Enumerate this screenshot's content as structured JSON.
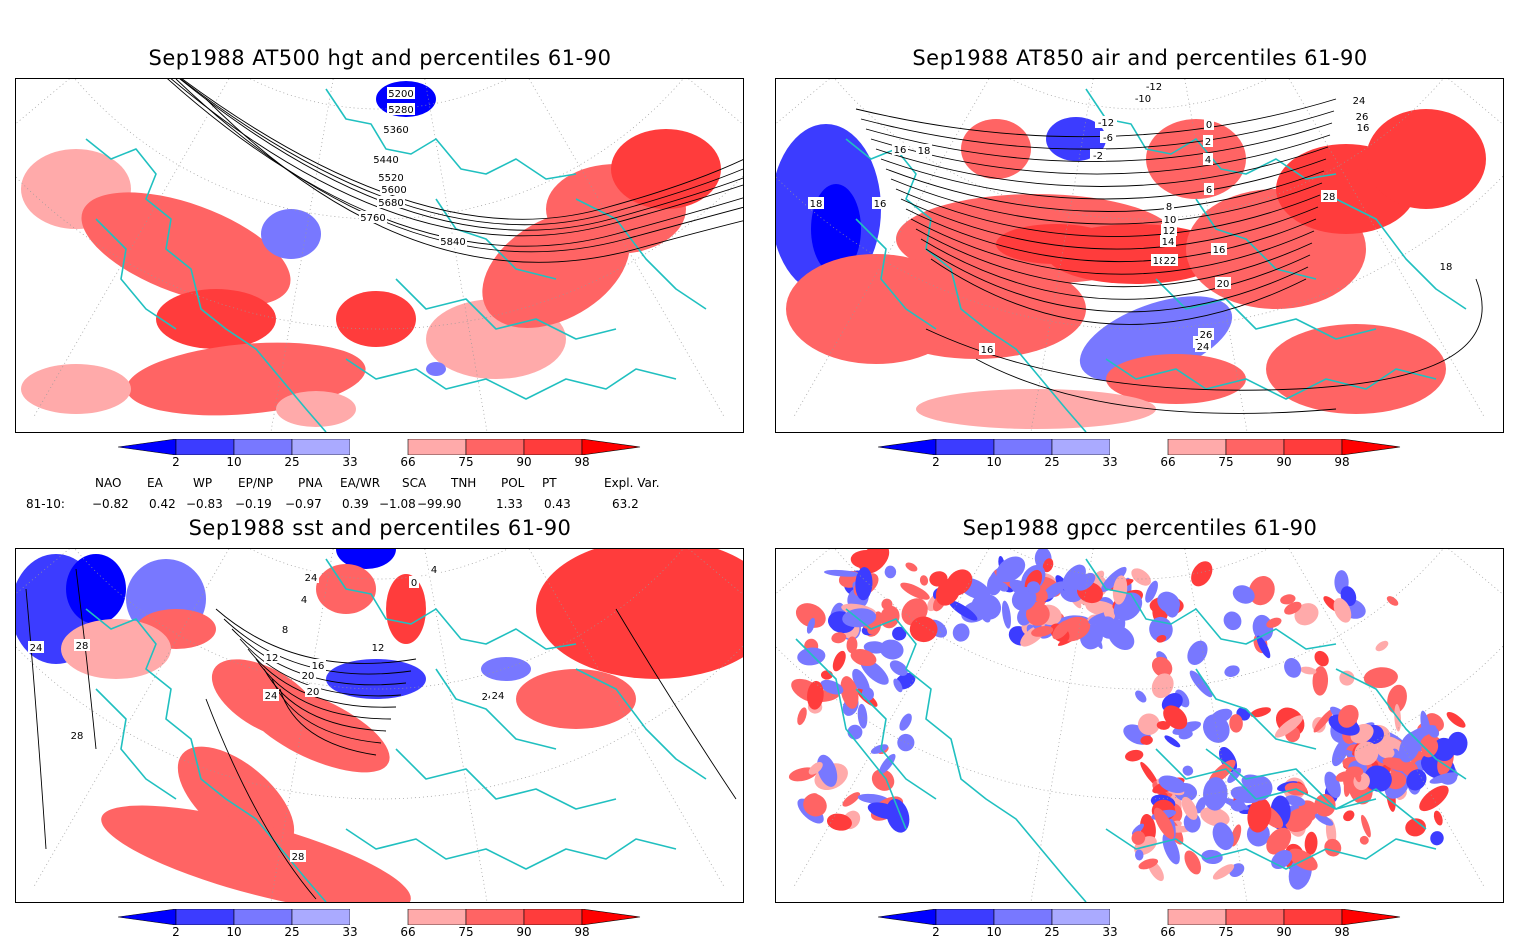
{
  "panels": [
    {
      "id": "p1",
      "title": "Sep1988 AT500 hgt and percentiles 61-90",
      "contour_labels": [
        "5200",
        "5280",
        "5360",
        "5440",
        "5520",
        "5600",
        "5680",
        "5760",
        "5840"
      ]
    },
    {
      "id": "p2",
      "title": "Sep1988 AT850 air and percentiles 61-90",
      "contour_labels": [
        "-12",
        "-10",
        "-12",
        "-6",
        "-2",
        "0",
        "2",
        "4",
        "6",
        "8",
        "10",
        "12",
        "14",
        "16",
        "18",
        "20",
        "22",
        "24",
        "26",
        "28",
        "16",
        "18",
        "16",
        "18",
        "16",
        "18",
        "22",
        "24",
        "26",
        "16"
      ]
    },
    {
      "id": "p3",
      "title": "Sep1988 sst and percentiles 61-90",
      "contour_labels": [
        "24",
        "28",
        "24",
        "4",
        "8",
        "12",
        "16",
        "20",
        "24",
        "0",
        "4",
        "12",
        "20",
        "24",
        "28",
        "28",
        "24"
      ]
    },
    {
      "id": "p4",
      "title": "Sep1988 gpcc percentiles 61-90",
      "contour_labels": []
    }
  ],
  "colorbar": {
    "ticks": [
      "2",
      "10",
      "25",
      "33",
      "66",
      "75",
      "90",
      "98"
    ],
    "colors": {
      "deep_blue": "#0000ff",
      "blue": "#3c3cff",
      "mid_blue": "#7878ff",
      "light_blue": "#aaaaff",
      "light_red": "#ffaaaa",
      "mid_red": "#ff6464",
      "red": "#ff3c3c",
      "deep_red": "#ff0000"
    }
  },
  "indices": {
    "headers": [
      "NAO",
      "EA",
      "WP",
      "EP/NP",
      "PNA",
      "EA/WR",
      "SCA",
      "TNH",
      "POL",
      "PT",
      "Expl. Var."
    ],
    "row_label": "81-10:",
    "values": [
      "−0.82",
      "0.42",
      "−0.83",
      "−0.19",
      "−0.97",
      "0.39",
      "−1.08",
      "−99.90",
      "1.33",
      "0.43",
      "63.2"
    ]
  },
  "map_colors": {
    "coast": "#20c0c0",
    "grid": "#999999",
    "contour": "#000000"
  }
}
